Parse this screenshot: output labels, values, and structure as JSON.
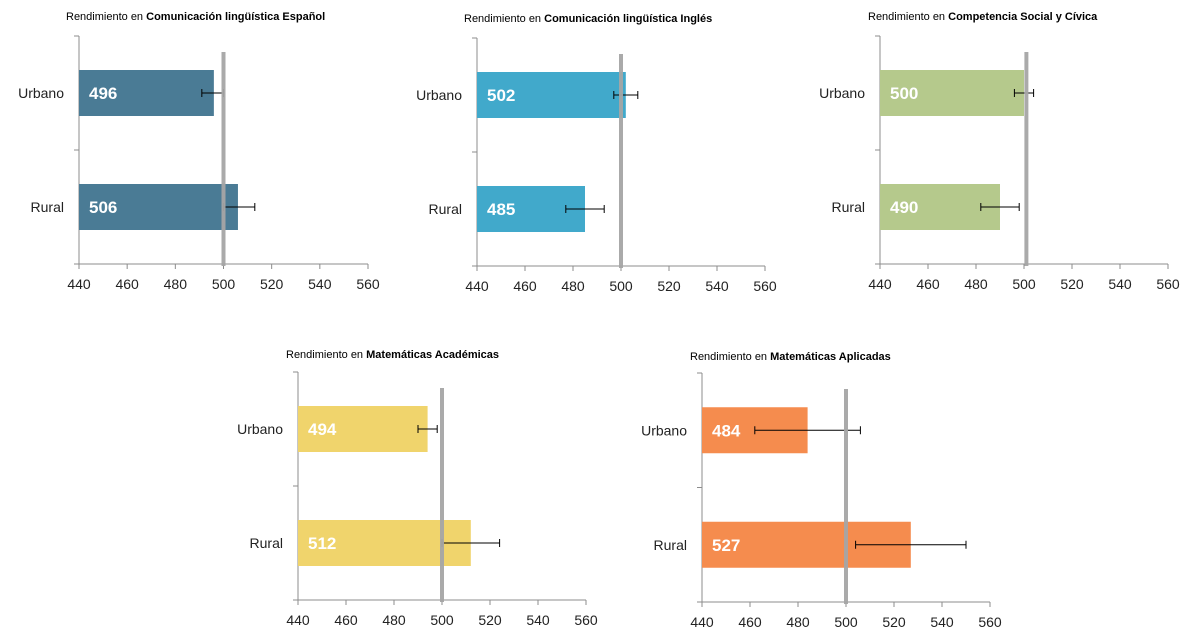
{
  "chart_data": [
    {
      "type": "bar",
      "orientation": "horizontal",
      "title_prefix": "Rendimiento en",
      "title_subject": "Comunicación lingüística Español",
      "categories": [
        "Urbano",
        "Rural"
      ],
      "values": [
        496,
        506
      ],
      "error_low": [
        491,
        500
      ],
      "error_high": [
        500,
        513
      ],
      "reference_value": 500,
      "xlim": [
        440,
        560
      ],
      "xticks": [
        "440",
        "460",
        "480",
        "500",
        "520",
        "540",
        "560"
      ],
      "color": "#4a7b95"
    },
    {
      "type": "bar",
      "orientation": "horizontal",
      "title_prefix": "Rendimiento en",
      "title_subject": "Comunicación lingüística Inglés",
      "categories": [
        "Urbano",
        "Rural"
      ],
      "values": [
        502,
        485
      ],
      "error_low": [
        497,
        477
      ],
      "error_high": [
        507,
        493
      ],
      "reference_value": 500,
      "xlim": [
        440,
        560
      ],
      "xticks": [
        "440",
        "460",
        "480",
        "500",
        "520",
        "540",
        "560"
      ],
      "color": "#41a9cb"
    },
    {
      "type": "bar",
      "orientation": "horizontal",
      "title_prefix": "Rendimiento en",
      "title_subject": "Competencia Social y Cívica",
      "categories": [
        "Urbano",
        "Rural"
      ],
      "values": [
        500,
        490
      ],
      "error_low": [
        496,
        482
      ],
      "error_high": [
        504,
        498
      ],
      "reference_value": 501,
      "xlim": [
        440,
        560
      ],
      "xticks": [
        "440",
        "460",
        "480",
        "500",
        "520",
        "540",
        "560"
      ],
      "color": "#b5c98c"
    },
    {
      "type": "bar",
      "orientation": "horizontal",
      "title_prefix": "Rendimiento en",
      "title_subject": "Matemáticas Académicas",
      "categories": [
        "Urbano",
        "Rural"
      ],
      "values": [
        494,
        512
      ],
      "error_low": [
        490,
        500
      ],
      "error_high": [
        498,
        524
      ],
      "reference_value": 500,
      "xlim": [
        440,
        560
      ],
      "xticks": [
        "440",
        "460",
        "480",
        "500",
        "520",
        "540",
        "560"
      ],
      "color": "#f0d46c"
    },
    {
      "type": "bar",
      "orientation": "horizontal",
      "title_prefix": "Rendimiento en",
      "title_subject": "Matemáticas Aplicadas",
      "categories": [
        "Urbano",
        "Rural"
      ],
      "values": [
        484,
        527
      ],
      "error_low": [
        462,
        504
      ],
      "error_high": [
        506,
        550
      ],
      "reference_value": 500,
      "xlim": [
        440,
        560
      ],
      "xticks": [
        "440",
        "460",
        "480",
        "500",
        "520",
        "540",
        "560"
      ],
      "color": "#f58c4e"
    }
  ]
}
